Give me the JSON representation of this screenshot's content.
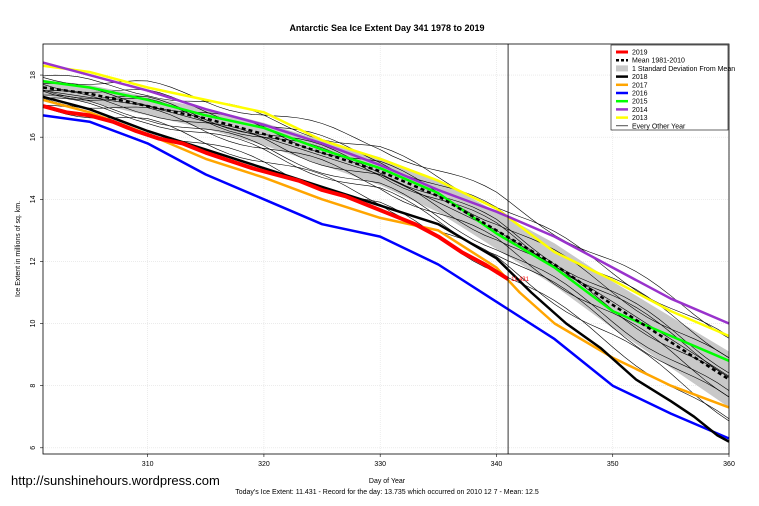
{
  "chart_data": {
    "type": "line",
    "title": "Antarctic Sea Ice Extent Day 341 1978 to 2019",
    "xlabel": "Day of Year",
    "ylabel": "Ice Extent in millions of sq. km.",
    "xlim": [
      301,
      360
    ],
    "ylim": [
      5.8,
      19.0
    ],
    "x_ticks": [
      310,
      320,
      330,
      340,
      350,
      360
    ],
    "y_ticks": [
      6,
      8,
      10,
      12,
      14,
      16,
      18
    ],
    "grid": true,
    "legend_position": "top-right",
    "vline_x": 341,
    "current_marker": {
      "x": 341,
      "y": 11.431,
      "label": "11.431"
    },
    "series": [
      {
        "name": "2019",
        "color": "#ff0000",
        "width": 4,
        "style": "solid",
        "x": [
          301,
          303,
          305,
          307,
          309,
          311,
          313,
          315,
          317,
          319,
          321,
          323,
          325,
          327,
          329,
          331,
          333,
          335,
          337,
          339,
          341
        ],
        "y": [
          17.0,
          16.8,
          16.7,
          16.5,
          16.2,
          15.95,
          15.8,
          15.5,
          15.25,
          15.0,
          14.8,
          14.6,
          14.3,
          14.1,
          13.8,
          13.5,
          13.2,
          12.8,
          12.3,
          11.9,
          11.431
        ]
      },
      {
        "name": "Mean 1981-2010",
        "color": "#000000",
        "width": 2.5,
        "style": "dashed",
        "x": [
          301,
          305,
          310,
          315,
          320,
          325,
          330,
          335,
          340,
          345,
          350,
          355,
          360
        ],
        "y": [
          17.6,
          17.4,
          17.0,
          16.6,
          16.1,
          15.5,
          14.9,
          14.1,
          13.0,
          11.9,
          10.6,
          9.4,
          8.2
        ]
      },
      {
        "name": "1 Standard Deviation From Mean",
        "color": "#c8c8c8",
        "width": 0,
        "style": "band",
        "x": [
          301,
          305,
          310,
          315,
          320,
          325,
          330,
          335,
          340,
          345,
          350,
          355,
          360
        ],
        "y": [
          0.25,
          0.28,
          0.3,
          0.33,
          0.36,
          0.4,
          0.45,
          0.52,
          0.6,
          0.68,
          0.75,
          0.82,
          0.9
        ]
      },
      {
        "name": "2018",
        "color": "#000000",
        "width": 2.5,
        "style": "solid",
        "x": [
          301,
          305,
          310,
          315,
          320,
          325,
          330,
          335,
          340,
          343,
          346,
          349,
          352,
          355,
          357,
          359,
          360
        ],
        "y": [
          17.3,
          16.9,
          16.2,
          15.6,
          15.0,
          14.4,
          13.8,
          13.2,
          12.1,
          11.0,
          10.0,
          9.2,
          8.2,
          7.5,
          7.0,
          6.4,
          6.2
        ]
      },
      {
        "name": "2017",
        "color": "#ffa500",
        "width": 2.5,
        "style": "solid",
        "x": [
          301,
          305,
          310,
          315,
          320,
          325,
          330,
          335,
          340,
          342,
          345,
          350,
          355,
          360
        ],
        "y": [
          17.2,
          16.8,
          16.1,
          15.3,
          14.7,
          14.0,
          13.4,
          13.0,
          11.8,
          11.0,
          10.0,
          8.9,
          8.0,
          7.3
        ]
      },
      {
        "name": "2016",
        "color": "#0000ff",
        "width": 2.5,
        "style": "solid",
        "x": [
          301,
          305,
          310,
          315,
          320,
          325,
          330,
          335,
          340,
          345,
          350,
          355,
          360
        ],
        "y": [
          16.7,
          16.5,
          15.8,
          14.8,
          14.0,
          13.2,
          12.8,
          11.9,
          10.7,
          9.5,
          8.0,
          7.1,
          6.3
        ]
      },
      {
        "name": "2015",
        "color": "#00ff00",
        "width": 2.5,
        "style": "solid",
        "x": [
          301,
          305,
          310,
          315,
          320,
          325,
          330,
          335,
          340,
          345,
          350,
          355,
          360
        ],
        "y": [
          17.8,
          17.6,
          17.2,
          16.7,
          16.3,
          15.6,
          15.0,
          14.2,
          12.9,
          11.8,
          10.4,
          9.6,
          8.8
        ]
      },
      {
        "name": "2014",
        "color": "#9932cc",
        "width": 2.5,
        "style": "solid",
        "x": [
          301,
          305,
          310,
          315,
          320,
          325,
          330,
          335,
          340,
          345,
          350,
          355,
          360
        ],
        "y": [
          18.4,
          18.0,
          17.5,
          16.9,
          16.4,
          15.8,
          15.1,
          14.3,
          13.6,
          12.8,
          11.8,
          10.8,
          10.0
        ]
      },
      {
        "name": "2013",
        "color": "#ffff00",
        "width": 2.5,
        "style": "solid",
        "x": [
          301,
          305,
          310,
          315,
          320,
          325,
          330,
          335,
          340,
          345,
          350,
          355,
          360
        ],
        "y": [
          18.3,
          18.1,
          17.6,
          17.2,
          16.8,
          15.9,
          15.3,
          14.6,
          13.7,
          12.3,
          11.4,
          10.4,
          9.6
        ]
      },
      {
        "name": "Every Other Year",
        "color": "#000000",
        "width": 0.6,
        "style": "solid",
        "x": [
          301,
          310,
          320,
          330,
          340,
          350,
          360
        ],
        "y": [
          17.5,
          17.0,
          16.0,
          14.8,
          13.0,
          10.7,
          8.3
        ]
      }
    ]
  },
  "footer": {
    "url": "http://sunshinehours.wordpress.com",
    "summary": "Today's Ice Extent: 11.431  - Record for the day: 13.735 which occurred on 2010 12 7  - Mean: 12.5"
  }
}
